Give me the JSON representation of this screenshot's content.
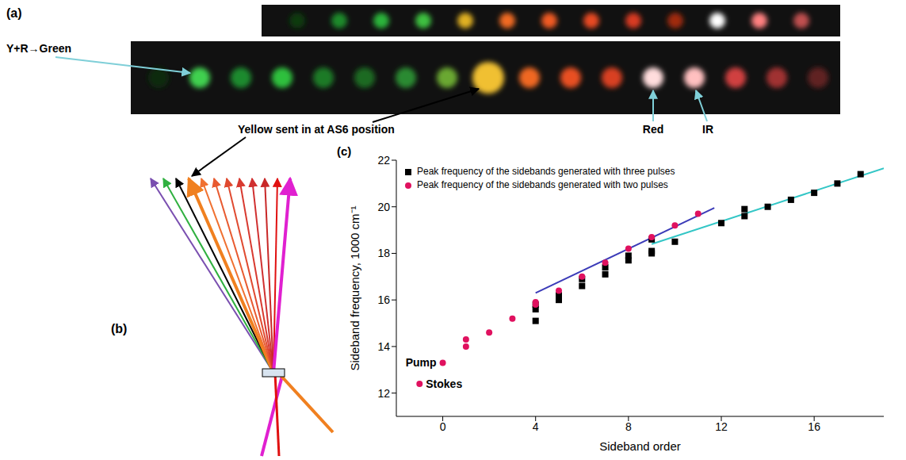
{
  "panel_a": {
    "label": "(a)",
    "annotations": [
      "Y+R→Green",
      "Yellow sent in at AS6 position",
      "Red",
      "IR"
    ]
  },
  "panel_b": {
    "label": "(b)"
  },
  "chart_data": {
    "type": "scatter",
    "panel_label": "(c)",
    "x_label": "Sideband order",
    "y_label": "Sideband frequency, 1000 cm⁻¹",
    "xlim": [
      -2,
      19
    ],
    "xticks": [
      0,
      4,
      8,
      12,
      16
    ],
    "ylim": [
      11,
      22
    ],
    "yticks": [
      12,
      14,
      16,
      18,
      20,
      22
    ],
    "legend": "top left",
    "series": [
      {
        "name": "Peak frequency of the sidebands generated with three pulses",
        "type": "scatter",
        "marker": "square",
        "color": "#000000",
        "x": [
          4,
          4,
          4,
          5,
          5,
          6,
          6,
          7,
          7,
          8,
          8,
          9,
          9,
          9,
          10,
          12,
          13,
          13,
          14,
          15,
          16,
          17,
          18
        ],
        "values": [
          15.1,
          15.6,
          15.8,
          16.0,
          16.2,
          16.6,
          16.9,
          17.1,
          17.4,
          17.7,
          17.9,
          18.0,
          18.1,
          18.6,
          18.5,
          19.3,
          19.6,
          19.9,
          20.0,
          20.3,
          20.6,
          21.0,
          21.4
        ]
      },
      {
        "name": "Peak frequency of the sidebands generated with two pulses",
        "type": "scatter",
        "marker": "circle",
        "color": "#e0115f",
        "x": [
          -1,
          0,
          1,
          1,
          2,
          3,
          4,
          4,
          5,
          6,
          7,
          8,
          9,
          10,
          11
        ],
        "values": [
          12.4,
          13.3,
          14.3,
          14.0,
          14.6,
          15.2,
          15.9,
          15.8,
          16.4,
          17.0,
          17.6,
          18.2,
          18.7,
          19.2,
          19.7
        ]
      },
      {
        "type": "line",
        "line_style": "solid",
        "color": "#3b3bb8",
        "x": [
          4,
          11.7
        ],
        "values": [
          16.3,
          19.95
        ]
      },
      {
        "type": "line",
        "line_style": "solid",
        "color": "#33c6c6",
        "x": [
          9,
          19
        ],
        "values": [
          18.4,
          21.65
        ]
      }
    ],
    "annotations": [
      {
        "text": "Pump",
        "x": 0,
        "y": 13.3
      },
      {
        "text": "Stokes",
        "x": -1,
        "y": 12.4
      }
    ]
  }
}
